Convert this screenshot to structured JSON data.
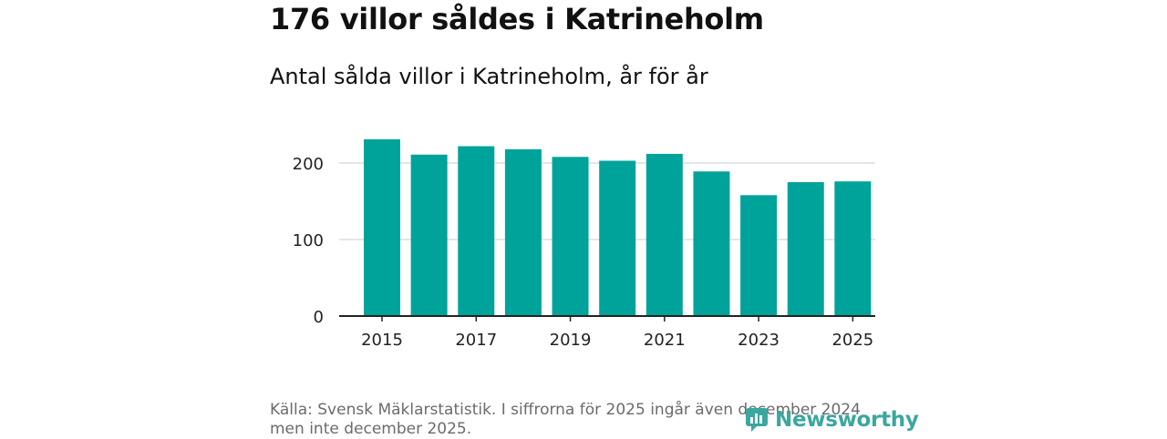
{
  "header": {
    "title": "176 villor såldes i Katrineholm",
    "subtitle": "Antal sålda villor i Katrineholm, år för år"
  },
  "footer": {
    "source": "Källa: Svensk Mäklarstatistik. I siffrorna för 2025 ingår även december 2024 men inte december 2025.",
    "logo_text": "Newsworthy",
    "logo_icon": "newsworthy-logo-icon"
  },
  "colors": {
    "bar": "#00a39a",
    "grid": "#d9dde0",
    "axis": "#222222",
    "logo": "#3aa7a0"
  },
  "chart_data": {
    "type": "bar",
    "title": "176 villor såldes i Katrineholm",
    "subtitle": "Antal sålda villor i Katrineholm, år för år",
    "xlabel": "",
    "ylabel": "",
    "categories": [
      "2015",
      "2016",
      "2017",
      "2018",
      "2019",
      "2020",
      "2021",
      "2022",
      "2023",
      "2024",
      "2025"
    ],
    "values": [
      231,
      211,
      222,
      218,
      208,
      203,
      212,
      189,
      158,
      175,
      176
    ],
    "x_tick_labels": [
      "2015",
      "2017",
      "2019",
      "2021",
      "2023",
      "2025"
    ],
    "y_ticks": [
      0,
      100,
      200
    ],
    "ylim": [
      0,
      240
    ],
    "grid": true
  }
}
